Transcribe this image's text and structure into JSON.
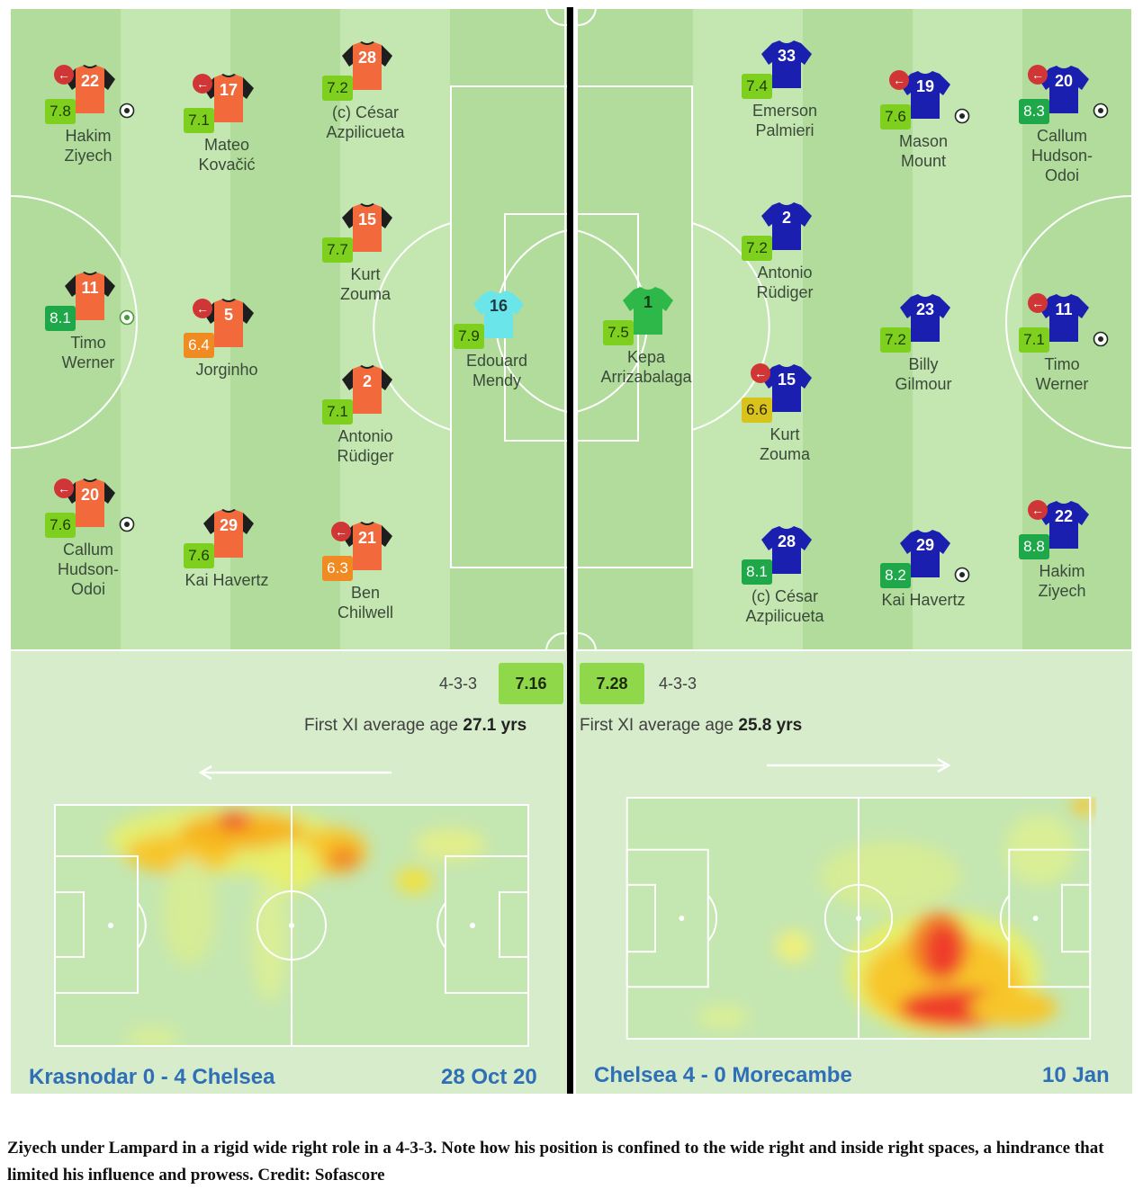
{
  "left": {
    "formation": "4-3-3",
    "avg_rating": "7.16",
    "age_label": "First XI average age",
    "age_value": "27.1 yrs",
    "match": "Krasnodar 0 - 4 Chelsea",
    "date": "28 Oct 20",
    "colors": {
      "shirt": "#f26a3c",
      "sleeve": "#1e1e1e",
      "keeper": "#6ae6ea"
    },
    "players": [
      {
        "id": "ziyech",
        "num": "22",
        "rating": "7.8",
        "rc": "green",
        "line1": "Hakim",
        "line2": "Ziyech",
        "sub": true,
        "goal": true
      },
      {
        "id": "kovacic",
        "num": "17",
        "rating": "7.1",
        "rc": "green",
        "line1": "Mateo",
        "line2": "Kovačić",
        "sub": true,
        "goal": false
      },
      {
        "id": "azpilicueta",
        "num": "28",
        "rating": "7.2",
        "rc": "green",
        "line1": "(c) César",
        "line2": "Azpilicueta",
        "sub": false,
        "goal": false
      },
      {
        "id": "zouma",
        "num": "15",
        "rating": "7.7",
        "rc": "green",
        "line1": "Kurt",
        "line2": "Zouma",
        "sub": false,
        "goal": false
      },
      {
        "id": "werner",
        "num": "11",
        "rating": "8.1",
        "rc": "dgreen",
        "line1": "Timo",
        "line2": "Werner",
        "sub": false,
        "goal": true,
        "goal_type": "penalty"
      },
      {
        "id": "jorginho",
        "num": "5",
        "rating": "6.4",
        "rc": "orange",
        "line1": "Jorginho",
        "line2": "",
        "sub": true,
        "goal": false
      },
      {
        "id": "mendy",
        "num": "16",
        "rating": "7.9",
        "rc": "green",
        "line1": "Edouard",
        "line2": "Mendy",
        "sub": false,
        "goal": false,
        "keeper": true
      },
      {
        "id": "rudiger",
        "num": "2",
        "rating": "7.1",
        "rc": "green",
        "line1": "Antonio",
        "line2": "Rüdiger",
        "sub": false,
        "goal": false
      },
      {
        "id": "hudson-odoi",
        "num": "20",
        "rating": "7.6",
        "rc": "green",
        "line1": "Callum",
        "line2": "Hudson-",
        "line3": "Odoi",
        "sub": true,
        "goal": true
      },
      {
        "id": "havertz",
        "num": "29",
        "rating": "7.6",
        "rc": "green",
        "line1": "Kai Havertz",
        "line2": "",
        "sub": false,
        "goal": false
      },
      {
        "id": "chilwell",
        "num": "21",
        "rating": "6.3",
        "rc": "orange",
        "line1": "Ben",
        "line2": "Chilwell",
        "sub": true,
        "goal": false
      }
    ]
  },
  "right": {
    "formation": "4-3-3",
    "avg_rating": "7.28",
    "age_label": "First XI average age",
    "age_value": "25.8 yrs",
    "match": "Chelsea 4 - 0 Morecambe",
    "date": "10 Jan",
    "colors": {
      "shirt": "#1a1fb0",
      "sleeve": "#1a1fb0",
      "keeper": "#2fb84a"
    },
    "players": [
      {
        "id": "emerson",
        "num": "33",
        "rating": "7.4",
        "rc": "green",
        "line1": "Emerson",
        "line2": "Palmieri",
        "sub": false,
        "goal": false
      },
      {
        "id": "mount",
        "num": "19",
        "rating": "7.6",
        "rc": "green",
        "line1": "Mason",
        "line2": "Mount",
        "sub": true,
        "goal": true
      },
      {
        "id": "hudson-odoi",
        "num": "20",
        "rating": "8.3",
        "rc": "dgreen",
        "line1": "Callum",
        "line2": "Hudson-",
        "line3": "Odoi",
        "sub": true,
        "goal": true
      },
      {
        "id": "rudiger",
        "num": "2",
        "rating": "7.2",
        "rc": "green",
        "line1": "Antonio",
        "line2": "Rüdiger",
        "sub": false,
        "goal": false
      },
      {
        "id": "kepa",
        "num": "1",
        "rating": "7.5",
        "rc": "green",
        "line1": "Kepa",
        "line2": "Arrizabalaga",
        "sub": false,
        "goal": false,
        "keeper": true
      },
      {
        "id": "gilmour",
        "num": "23",
        "rating": "7.2",
        "rc": "green",
        "line1": "Billy",
        "line2": "Gilmour",
        "sub": false,
        "goal": false
      },
      {
        "id": "werner",
        "num": "11",
        "rating": "7.1",
        "rc": "green",
        "line1": "Timo",
        "line2": "Werner",
        "sub": true,
        "goal": true
      },
      {
        "id": "zouma",
        "num": "15",
        "rating": "6.6",
        "rc": "yellow",
        "line1": "Kurt",
        "line2": "Zouma",
        "sub": true,
        "goal": false
      },
      {
        "id": "azpilicueta",
        "num": "28",
        "rating": "8.1",
        "rc": "dgreen",
        "line1": "(c) César",
        "line2": "Azpilicueta",
        "sub": false,
        "goal": false
      },
      {
        "id": "havertz",
        "num": "29",
        "rating": "8.2",
        "rc": "dgreen",
        "line1": "Kai Havertz",
        "line2": "",
        "sub": false,
        "goal": true
      },
      {
        "id": "ziyech",
        "num": "22",
        "rating": "8.8",
        "rc": "dgreen",
        "line1": "Hakim",
        "line2": "Ziyech",
        "sub": true,
        "goal": false
      }
    ]
  },
  "caption": "Ziyech under Lampard in a rigid wide right role in a 4-3-3. Note how his position is confined to the wide right and inside right spaces, a hindrance that limited his influence and prowess. Credit: Sofascore"
}
